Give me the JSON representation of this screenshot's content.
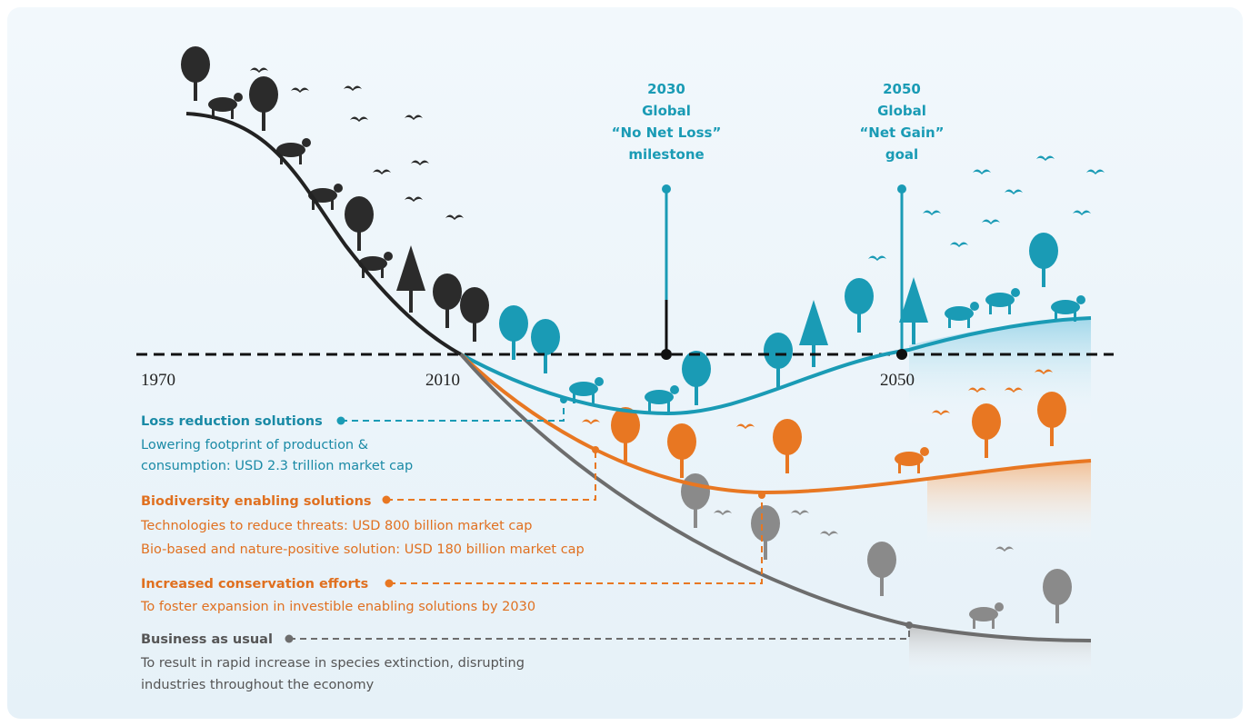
{
  "timeline": {
    "labels": [
      "1970",
      "2010",
      "2050"
    ]
  },
  "milestones": [
    {
      "lines": [
        "2030",
        "Global",
        "“No Net Loss”",
        "milestone"
      ]
    },
    {
      "lines": [
        "2050",
        "Global",
        "“Net Gain”",
        "goal"
      ]
    }
  ],
  "pathways": [
    {
      "title": "Loss reduction solutions",
      "lines": [
        "Lowering footprint of production &",
        "consumption: USD 2.3 trillion market cap"
      ]
    },
    {
      "title": "Biodiversity enabling solutions",
      "lines": [
        "Technologies to reduce threats: USD 800 billion market cap",
        "Bio-based and nature-positive solution: USD 180 billion market cap"
      ]
    },
    {
      "title": "Increased conservation efforts",
      "lines": [
        "To foster expansion in investible enabling solutions by 2030"
      ]
    },
    {
      "title": "Business as usual",
      "lines": [
        "To result in rapid increase in species extinction, disrupting",
        "industries throughout the economy"
      ]
    }
  ]
}
